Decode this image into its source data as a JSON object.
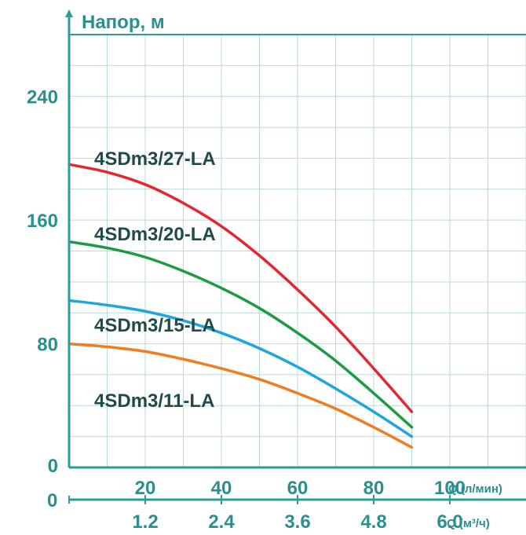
{
  "chart_data": {
    "type": "line",
    "title": "",
    "ylabel": "Напор, м",
    "xlabel_primary": "Q (л/мин)",
    "xlabel_secondary": "Q (м³/ч)",
    "xlim": [
      0,
      120
    ],
    "ylim": [
      0,
      280
    ],
    "y_ticks": [
      0,
      80,
      160,
      240
    ],
    "y_tick_labels": [
      "0",
      "80",
      "160",
      "240"
    ],
    "x_ticks": [
      20,
      40,
      60,
      80,
      100
    ],
    "x_tick_labels": [
      "20",
      "40",
      "60",
      "80",
      "100"
    ],
    "x_ticks_secondary": [
      20,
      40,
      60,
      80,
      100
    ],
    "x_tick_labels_secondary": [
      "1.2",
      "2.4",
      "3.6",
      "4.8",
      "6.0"
    ],
    "secondary_zero_label": "0",
    "grid": true,
    "series": [
      {
        "name": "4SDm3/27-LA",
        "color": "#e3262f",
        "x": [
          0,
          10,
          20,
          30,
          40,
          50,
          60,
          70,
          80,
          90
        ],
        "y": [
          196,
          191,
          183,
          171,
          156,
          137,
          115,
          91,
          64,
          36
        ]
      },
      {
        "name": "4SDm3/20-LA",
        "color": "#1e9a42",
        "x": [
          0,
          10,
          20,
          30,
          40,
          50,
          60,
          70,
          80,
          90
        ],
        "y": [
          146,
          142,
          136,
          127,
          116,
          103,
          87,
          69,
          48,
          26
        ]
      },
      {
        "name": "4SDm3/15-LA",
        "color": "#1ea6df",
        "x": [
          0,
          10,
          20,
          30,
          40,
          50,
          60,
          70,
          80,
          90
        ],
        "y": [
          108,
          105,
          101,
          95,
          87,
          77,
          65,
          51,
          36,
          20
        ]
      },
      {
        "name": "4SDm3/11-LA",
        "color": "#ef7d21",
        "x": [
          0,
          10,
          20,
          30,
          40,
          50,
          60,
          70,
          80,
          90
        ],
        "y": [
          80,
          78,
          75,
          70,
          64,
          57,
          48,
          38,
          26,
          13
        ]
      }
    ]
  },
  "colors": {
    "axis": "#2a9d99",
    "grid": "#b9dcda",
    "label_text": "#2b8f8f",
    "series_label_text": "#1f4b4a"
  }
}
